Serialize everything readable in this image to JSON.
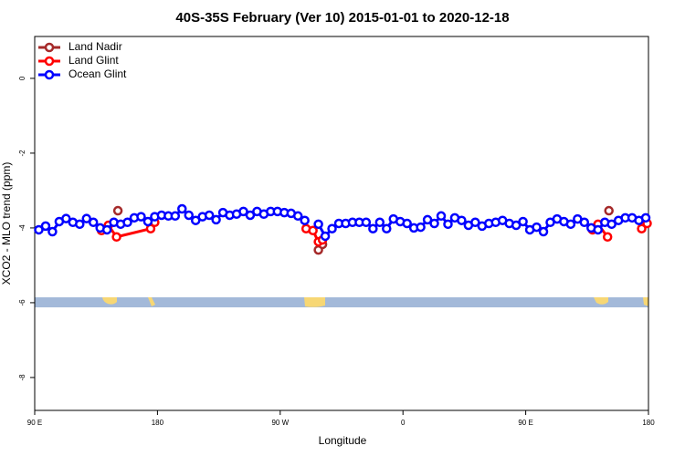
{
  "chart_data": {
    "type": "line",
    "title": "40S-35S February (Ver 10)   2015-01-01 to 2020-12-18",
    "x_label": "Longitude",
    "y_label": "XCO2 - MLO trend (ppm)",
    "xlim": [
      90,
      540
    ],
    "xticks": [
      {
        "value": 90,
        "label": "90 E"
      },
      {
        "value": 180,
        "label": "180"
      },
      {
        "value": 270,
        "label": "90 W"
      },
      {
        "value": 360,
        "label": "0"
      },
      {
        "value": 450,
        "label": "90 E"
      },
      {
        "value": 540,
        "label": "180"
      }
    ],
    "ylim": [
      -8.88,
      1.12
    ],
    "yticks": [
      0,
      -2,
      -4,
      -6,
      -8
    ],
    "legend": "top-left",
    "series": [
      {
        "name": "Land Nadir",
        "color": "#a52a2a",
        "x": [
          151,
          230,
          298,
          301,
          400,
          511
        ],
        "values": [
          -3.54,
          null,
          -4.59,
          -4.44,
          null,
          -3.54
        ]
      },
      {
        "name": "Land Glint",
        "color": "#ff0000",
        "x": [
          139,
          144,
          150,
          175,
          178,
          230,
          289,
          294,
          298,
          301,
          400,
          499,
          503,
          510,
          520,
          535,
          539
        ],
        "values": [
          -4.07,
          -3.93,
          -4.24,
          -4.02,
          -3.85,
          null,
          -4.02,
          -4.07,
          -4.37,
          -4.32,
          null,
          -4.05,
          -3.9,
          -4.24,
          null,
          -4.02,
          -3.88
        ]
      },
      {
        "name": "Ocean Glint",
        "color": "#0000ff",
        "x": [
          93,
          98,
          103,
          108,
          113,
          118,
          123,
          128,
          133,
          138,
          143,
          148,
          153,
          158,
          163,
          168,
          173,
          178,
          183,
          188,
          193,
          198,
          203,
          208,
          213,
          218,
          223,
          228,
          233,
          238,
          243,
          248,
          253,
          258,
          263,
          268,
          273,
          278,
          283,
          288,
          293,
          298,
          303,
          308,
          313,
          318,
          323,
          328,
          333,
          338,
          343,
          348,
          353,
          358,
          363,
          368,
          373,
          378,
          383,
          388,
          393,
          398,
          403,
          408,
          413,
          418,
          423,
          428,
          433,
          438,
          443,
          448,
          453,
          458,
          463,
          468,
          473,
          478,
          483,
          488,
          493,
          498,
          503,
          508,
          513,
          518,
          523,
          528,
          533,
          538
        ],
        "values": [
          -4.05,
          -3.95,
          -4.1,
          -3.83,
          -3.75,
          -3.85,
          -3.9,
          -3.75,
          -3.85,
          -4.0,
          -4.05,
          -3.85,
          -3.9,
          -3.85,
          -3.73,
          -3.7,
          -3.83,
          -3.7,
          -3.66,
          -3.68,
          -3.68,
          -3.49,
          -3.66,
          -3.8,
          -3.7,
          -3.66,
          -3.78,
          -3.59,
          -3.66,
          -3.63,
          -3.56,
          -3.66,
          -3.56,
          -3.63,
          -3.56,
          -3.56,
          -3.59,
          -3.61,
          -3.68,
          -3.8,
          null,
          -3.9,
          -4.22,
          -4.02,
          -3.88,
          -3.88,
          -3.85,
          -3.85,
          -3.85,
          -4.02,
          -3.85,
          -4.02,
          -3.76,
          -3.83,
          -3.88,
          -4.0,
          -3.98,
          -3.78,
          -3.88,
          -3.68,
          -3.9,
          -3.73,
          -3.8,
          -3.93,
          -3.85,
          -3.95,
          -3.88,
          -3.85,
          -3.8,
          -3.88,
          -3.93,
          -3.83,
          -4.05,
          -3.98,
          -4.1,
          -3.85,
          -3.76,
          -3.83,
          -3.9,
          -3.76,
          -3.85,
          -4.0,
          -4.05,
          -3.85,
          -3.9,
          -3.8,
          -3.73,
          -3.73,
          -3.8,
          -3.73
        ]
      }
    ]
  }
}
